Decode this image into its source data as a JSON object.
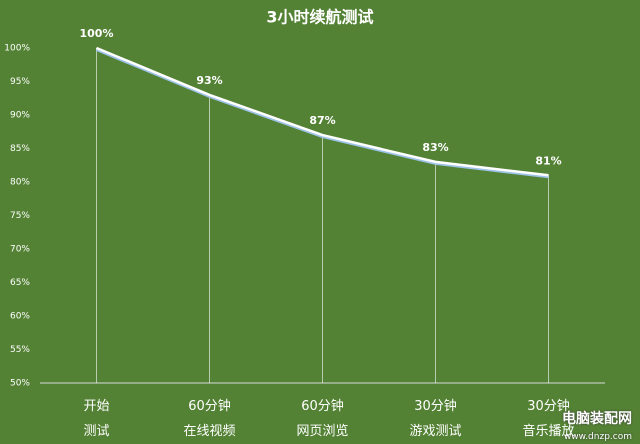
{
  "chart_data": {
    "type": "line",
    "title": "3小时续航测试",
    "categories": [
      "开始\n测试",
      "60分钟\n在线视频",
      "60分钟\n网页浏览",
      "30分钟\n游戏测试",
      "30分钟\n音乐播放"
    ],
    "values": [
      100,
      93,
      87,
      83,
      81
    ],
    "value_labels": [
      "100%",
      "93%",
      "87%",
      "83%",
      "81%"
    ],
    "color": "#ffffff",
    "ylim": [
      50,
      100
    ],
    "yticks": [
      {
        "value": 50,
        "label": "50%"
      },
      {
        "value": 55,
        "label": "55%"
      },
      {
        "value": 60,
        "label": "60%"
      },
      {
        "value": 65,
        "label": "65%"
      },
      {
        "value": 70,
        "label": "70%"
      },
      {
        "value": 75,
        "label": "75%"
      },
      {
        "value": 80,
        "label": "80%"
      },
      {
        "value": 85,
        "label": "85%"
      },
      {
        "value": 90,
        "label": "90%"
      },
      {
        "value": 95,
        "label": "95%"
      },
      {
        "value": 100,
        "label": "100%"
      }
    ],
    "grid": false,
    "drop_lines": true
  },
  "watermark": {
    "title": "电脑装配网",
    "url": "www.dnzp.com"
  }
}
